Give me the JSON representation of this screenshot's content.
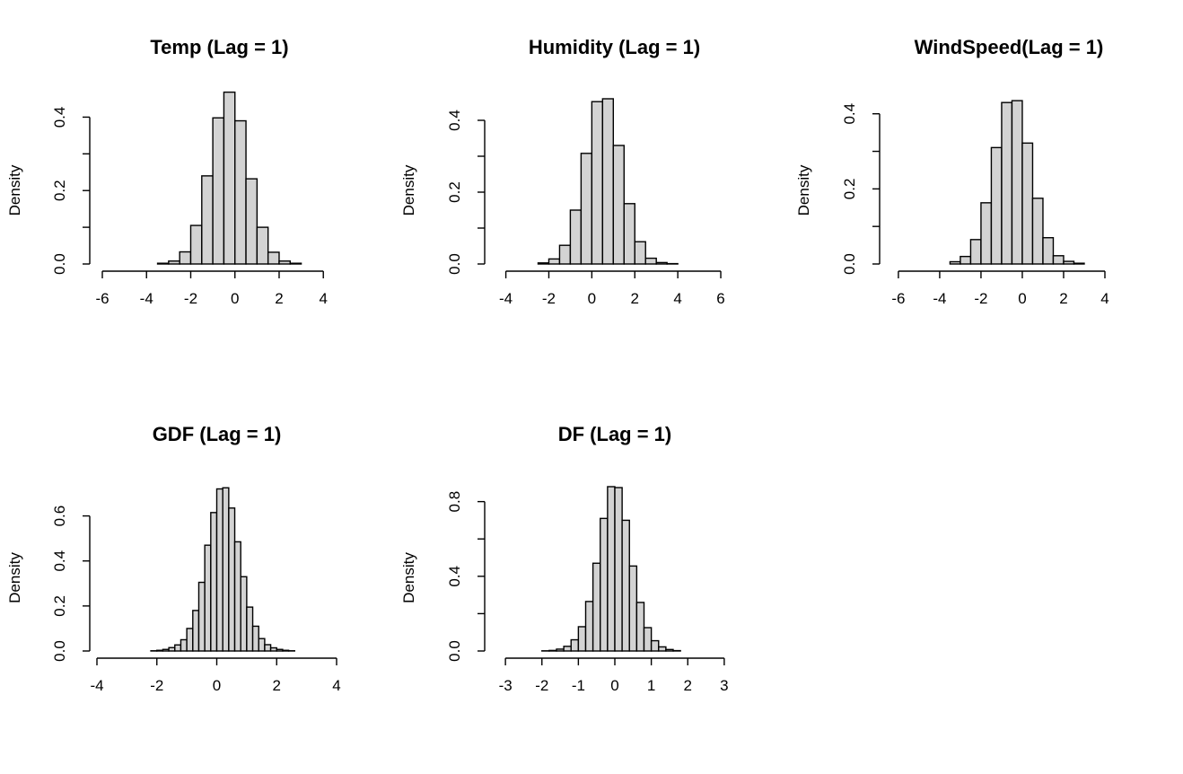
{
  "chart_data": [
    {
      "type": "histogram",
      "title": "Temp (Lag = 1)",
      "xlabel": "",
      "ylabel": "Density",
      "xlim": [
        -6,
        4.6
      ],
      "ylim": [
        0,
        0.45
      ],
      "xticks": [
        -6,
        -4,
        -2,
        0,
        2,
        4
      ],
      "yticks": [
        0,
        0.1,
        0.2,
        0.3,
        0.4
      ],
      "ytick_labels": [
        "0.0",
        "",
        "0.2",
        "",
        "0.4"
      ],
      "bins": [
        {
          "x0": -6.0,
          "x1": -5.5,
          "density": 0.0
        },
        {
          "x0": -5.5,
          "x1": -5.0,
          "density": 0.0
        },
        {
          "x0": -5.0,
          "x1": -4.5,
          "density": 0.0
        },
        {
          "x0": -4.5,
          "x1": -4.0,
          "density": 0.0
        },
        {
          "x0": -4.0,
          "x1": -3.5,
          "density": 0.0
        },
        {
          "x0": -3.5,
          "x1": -3.0,
          "density": 0.002
        },
        {
          "x0": -3.0,
          "x1": -2.5,
          "density": 0.008
        },
        {
          "x0": -2.5,
          "x1": -2.0,
          "density": 0.033
        },
        {
          "x0": -2.0,
          "x1": -1.5,
          "density": 0.105
        },
        {
          "x0": -1.5,
          "x1": -1.0,
          "density": 0.24
        },
        {
          "x0": -1.0,
          "x1": -0.5,
          "density": 0.398
        },
        {
          "x0": -0.5,
          "x1": 0.0,
          "density": 0.468
        },
        {
          "x0": 0.0,
          "x1": 0.5,
          "density": 0.39
        },
        {
          "x0": 0.5,
          "x1": 1.0,
          "density": 0.232
        },
        {
          "x0": 1.0,
          "x1": 1.5,
          "density": 0.1
        },
        {
          "x0": 1.5,
          "x1": 2.0,
          "density": 0.032
        },
        {
          "x0": 2.0,
          "x1": 2.5,
          "density": 0.008
        },
        {
          "x0": 2.5,
          "x1": 3.0,
          "density": 0.002
        },
        {
          "x0": 3.0,
          "x1": 3.5,
          "density": 0.0
        },
        {
          "x0": 3.5,
          "x1": 4.0,
          "density": 0.0
        },
        {
          "x0": 4.0,
          "x1": 4.5,
          "density": 0.0
        },
        {
          "x0": 4.5,
          "x1": 5.0,
          "density": 0.0
        }
      ]
    },
    {
      "type": "histogram",
      "title": "Humidity (Lag = 1)",
      "xlabel": "",
      "ylabel": "Density",
      "xlim": [
        -4.4,
        6.5
      ],
      "ylim": [
        0,
        0.46
      ],
      "xticks": [
        -4,
        -2,
        0,
        2,
        4,
        6
      ],
      "yticks": [
        0,
        0.1,
        0.2,
        0.3,
        0.4
      ],
      "ytick_labels": [
        "0.0",
        "",
        "0.2",
        "",
        "0.4"
      ],
      "bins": [
        {
          "x0": -4.5,
          "x1": -4.0,
          "density": 0.0
        },
        {
          "x0": -4.0,
          "x1": -3.5,
          "density": 0.0
        },
        {
          "x0": -3.5,
          "x1": -3.0,
          "density": 0.0
        },
        {
          "x0": -3.0,
          "x1": -2.5,
          "density": 0.0
        },
        {
          "x0": -2.5,
          "x1": -2.0,
          "density": 0.003
        },
        {
          "x0": -2.0,
          "x1": -1.5,
          "density": 0.014
        },
        {
          "x0": -1.5,
          "x1": -1.0,
          "density": 0.052
        },
        {
          "x0": -1.0,
          "x1": -0.5,
          "density": 0.15
        },
        {
          "x0": -0.5,
          "x1": 0.0,
          "density": 0.308
        },
        {
          "x0": 0.0,
          "x1": 0.5,
          "density": 0.452
        },
        {
          "x0": 0.5,
          "x1": 1.0,
          "density": 0.46
        },
        {
          "x0": 1.0,
          "x1": 1.5,
          "density": 0.33
        },
        {
          "x0": 1.5,
          "x1": 2.0,
          "density": 0.168
        },
        {
          "x0": 2.0,
          "x1": 2.5,
          "density": 0.062
        },
        {
          "x0": 2.5,
          "x1": 3.0,
          "density": 0.016
        },
        {
          "x0": 3.0,
          "x1": 3.5,
          "density": 0.004
        },
        {
          "x0": 3.5,
          "x1": 4.0,
          "density": 0.001
        },
        {
          "x0": 4.0,
          "x1": 4.5,
          "density": 0.0
        },
        {
          "x0": 4.5,
          "x1": 5.0,
          "density": 0.0
        },
        {
          "x0": 5.0,
          "x1": 5.5,
          "density": 0.0
        },
        {
          "x0": 5.5,
          "x1": 6.0,
          "density": 0.0
        },
        {
          "x0": 6.0,
          "x1": 6.5,
          "density": 0.0
        }
      ]
    },
    {
      "type": "histogram",
      "title": "WindSpeed(Lag = 1)",
      "xlabel": "",
      "ylabel": "Density",
      "xlim": [
        -6.3,
        5
      ],
      "ylim": [
        0,
        0.44
      ],
      "xticks": [
        -6,
        -4,
        -2,
        0,
        2,
        4
      ],
      "yticks": [
        0,
        0.1,
        0.2,
        0.3,
        0.4
      ],
      "ytick_labels": [
        "0.0",
        "",
        "0.2",
        "",
        "0.4"
      ],
      "bins": [
        {
          "x0": -6.0,
          "x1": -5.5,
          "density": 0.0
        },
        {
          "x0": -5.5,
          "x1": -5.0,
          "density": 0.0
        },
        {
          "x0": -5.0,
          "x1": -4.5,
          "density": 0.0
        },
        {
          "x0": -4.5,
          "x1": -4.0,
          "density": 0.0
        },
        {
          "x0": -4.0,
          "x1": -3.5,
          "density": 0.0
        },
        {
          "x0": -3.5,
          "x1": -3.0,
          "density": 0.006
        },
        {
          "x0": -3.0,
          "x1": -2.5,
          "density": 0.02
        },
        {
          "x0": -2.5,
          "x1": -2.0,
          "density": 0.065
        },
        {
          "x0": -2.0,
          "x1": -1.5,
          "density": 0.163
        },
        {
          "x0": -1.5,
          "x1": -1.0,
          "density": 0.31
        },
        {
          "x0": -1.0,
          "x1": -0.5,
          "density": 0.43
        },
        {
          "x0": -0.5,
          "x1": 0.0,
          "density": 0.435
        },
        {
          "x0": 0.0,
          "x1": 0.5,
          "density": 0.322
        },
        {
          "x0": 0.5,
          "x1": 1.0,
          "density": 0.175
        },
        {
          "x0": 1.0,
          "x1": 1.5,
          "density": 0.07
        },
        {
          "x0": 1.5,
          "x1": 2.0,
          "density": 0.022
        },
        {
          "x0": 2.0,
          "x1": 2.5,
          "density": 0.007
        },
        {
          "x0": 2.5,
          "x1": 3.0,
          "density": 0.002
        },
        {
          "x0": 3.0,
          "x1": 3.5,
          "density": 0.0
        },
        {
          "x0": 3.5,
          "x1": 4.0,
          "density": 0.0
        },
        {
          "x0": 4.0,
          "x1": 4.5,
          "density": 0.0
        },
        {
          "x0": 4.5,
          "x1": 5.0,
          "density": 0.0
        }
      ]
    },
    {
      "type": "histogram",
      "title": "GDF (Lag = 1)",
      "xlabel": "",
      "ylabel": "Density",
      "xlim": [
        -4,
        4
      ],
      "ylim": [
        0,
        0.73
      ],
      "xticks": [
        -4,
        -2,
        0,
        2,
        4
      ],
      "yticks": [
        0,
        0.2,
        0.4,
        0.6
      ],
      "ytick_labels": [
        "0.0",
        "0.2",
        "0.4",
        "0.6"
      ],
      "bins": [
        {
          "x0": -3.8,
          "x1": -3.6,
          "density": 0.0
        },
        {
          "x0": -3.6,
          "x1": -3.4,
          "density": 0.0
        },
        {
          "x0": -3.4,
          "x1": -3.2,
          "density": 0.0
        },
        {
          "x0": -3.2,
          "x1": -3.0,
          "density": 0.0
        },
        {
          "x0": -3.0,
          "x1": -2.8,
          "density": 0.0
        },
        {
          "x0": -2.8,
          "x1": -2.6,
          "density": 0.0
        },
        {
          "x0": -2.6,
          "x1": -2.4,
          "density": 0.0
        },
        {
          "x0": -2.4,
          "x1": -2.2,
          "density": 0.0
        },
        {
          "x0": -2.2,
          "x1": -2.0,
          "density": 0.001
        },
        {
          "x0": -2.0,
          "x1": -1.8,
          "density": 0.003
        },
        {
          "x0": -1.8,
          "x1": -1.6,
          "density": 0.007
        },
        {
          "x0": -1.6,
          "x1": -1.4,
          "density": 0.015
        },
        {
          "x0": -1.4,
          "x1": -1.2,
          "density": 0.027
        },
        {
          "x0": -1.2,
          "x1": -1.0,
          "density": 0.05
        },
        {
          "x0": -1.0,
          "x1": -0.8,
          "density": 0.1
        },
        {
          "x0": -0.8,
          "x1": -0.6,
          "density": 0.18
        },
        {
          "x0": -0.6,
          "x1": -0.4,
          "density": 0.305
        },
        {
          "x0": -0.4,
          "x1": -0.2,
          "density": 0.47
        },
        {
          "x0": -0.2,
          "x1": 0.0,
          "density": 0.615
        },
        {
          "x0": 0.0,
          "x1": 0.2,
          "density": 0.72
        },
        {
          "x0": 0.2,
          "x1": 0.4,
          "density": 0.725
        },
        {
          "x0": 0.4,
          "x1": 0.6,
          "density": 0.635
        },
        {
          "x0": 0.6,
          "x1": 0.8,
          "density": 0.485
        },
        {
          "x0": 0.8,
          "x1": 1.0,
          "density": 0.33
        },
        {
          "x0": 1.0,
          "x1": 1.2,
          "density": 0.195
        },
        {
          "x0": 1.2,
          "x1": 1.4,
          "density": 0.11
        },
        {
          "x0": 1.4,
          "x1": 1.6,
          "density": 0.055
        },
        {
          "x0": 1.6,
          "x1": 1.8,
          "density": 0.028
        },
        {
          "x0": 1.8,
          "x1": 2.0,
          "density": 0.014
        },
        {
          "x0": 2.0,
          "x1": 2.2,
          "density": 0.007
        },
        {
          "x0": 2.2,
          "x1": 2.4,
          "density": 0.003
        },
        {
          "x0": 2.4,
          "x1": 2.6,
          "density": 0.001
        },
        {
          "x0": 2.6,
          "x1": 2.8,
          "density": 0.0
        },
        {
          "x0": 2.8,
          "x1": 3.0,
          "density": 0.0
        },
        {
          "x0": 3.0,
          "x1": 3.2,
          "density": 0.0
        },
        {
          "x0": 3.2,
          "x1": 3.4,
          "density": 0.0
        },
        {
          "x0": 3.4,
          "x1": 3.6,
          "density": 0.0
        },
        {
          "x0": 3.6,
          "x1": 3.8,
          "density": 0.0
        },
        {
          "x0": 3.8,
          "x1": 4.0,
          "density": 0.0
        }
      ]
    },
    {
      "type": "histogram",
      "title": "DF (Lag = 1)",
      "xlabel": "",
      "ylabel": "Density",
      "xlim": [
        -3.2,
        3.2
      ],
      "ylim": [
        0,
        0.88
      ],
      "xticks": [
        -3,
        -2,
        -1,
        0,
        1,
        2,
        3
      ],
      "yticks": [
        0,
        0.2,
        0.4,
        0.6,
        0.8
      ],
      "ytick_labels": [
        "0.0",
        "",
        "0.4",
        "",
        "0.8"
      ],
      "bins": [
        {
          "x0": -3.2,
          "x1": -3.0,
          "density": 0.0
        },
        {
          "x0": -3.0,
          "x1": -2.8,
          "density": 0.0
        },
        {
          "x0": -2.8,
          "x1": -2.6,
          "density": 0.0
        },
        {
          "x0": -2.6,
          "x1": -2.4,
          "density": 0.0
        },
        {
          "x0": -2.4,
          "x1": -2.2,
          "density": 0.0
        },
        {
          "x0": -2.2,
          "x1": -2.0,
          "density": 0.0
        },
        {
          "x0": -2.0,
          "x1": -1.8,
          "density": 0.001
        },
        {
          "x0": -1.8,
          "x1": -1.6,
          "density": 0.003
        },
        {
          "x0": -1.6,
          "x1": -1.4,
          "density": 0.01
        },
        {
          "x0": -1.4,
          "x1": -1.2,
          "density": 0.025
        },
        {
          "x0": -1.2,
          "x1": -1.0,
          "density": 0.06
        },
        {
          "x0": -1.0,
          "x1": -0.8,
          "density": 0.13
        },
        {
          "x0": -0.8,
          "x1": -0.6,
          "density": 0.265
        },
        {
          "x0": -0.6,
          "x1": -0.4,
          "density": 0.47
        },
        {
          "x0": -0.4,
          "x1": -0.2,
          "density": 0.71
        },
        {
          "x0": -0.2,
          "x1": 0.0,
          "density": 0.88
        },
        {
          "x0": 0.0,
          "x1": 0.2,
          "density": 0.875
        },
        {
          "x0": 0.2,
          "x1": 0.4,
          "density": 0.7
        },
        {
          "x0": 0.4,
          "x1": 0.6,
          "density": 0.455
        },
        {
          "x0": 0.6,
          "x1": 0.8,
          "density": 0.26
        },
        {
          "x0": 0.8,
          "x1": 1.0,
          "density": 0.125
        },
        {
          "x0": 1.0,
          "x1": 1.2,
          "density": 0.055
        },
        {
          "x0": 1.2,
          "x1": 1.4,
          "density": 0.022
        },
        {
          "x0": 1.4,
          "x1": 1.6,
          "density": 0.008
        },
        {
          "x0": 1.6,
          "x1": 1.8,
          "density": 0.002
        },
        {
          "x0": 1.8,
          "x1": 2.0,
          "density": 0.0
        },
        {
          "x0": 2.0,
          "x1": 2.2,
          "density": 0.0
        },
        {
          "x0": 2.2,
          "x1": 2.4,
          "density": 0.0
        },
        {
          "x0": 2.4,
          "x1": 2.6,
          "density": 0.0
        },
        {
          "x0": 2.6,
          "x1": 2.8,
          "density": 0.0
        },
        {
          "x0": 2.8,
          "x1": 3.0,
          "density": 0.0
        },
        {
          "x0": 3.0,
          "x1": 3.2,
          "density": 0.0
        }
      ]
    }
  ]
}
